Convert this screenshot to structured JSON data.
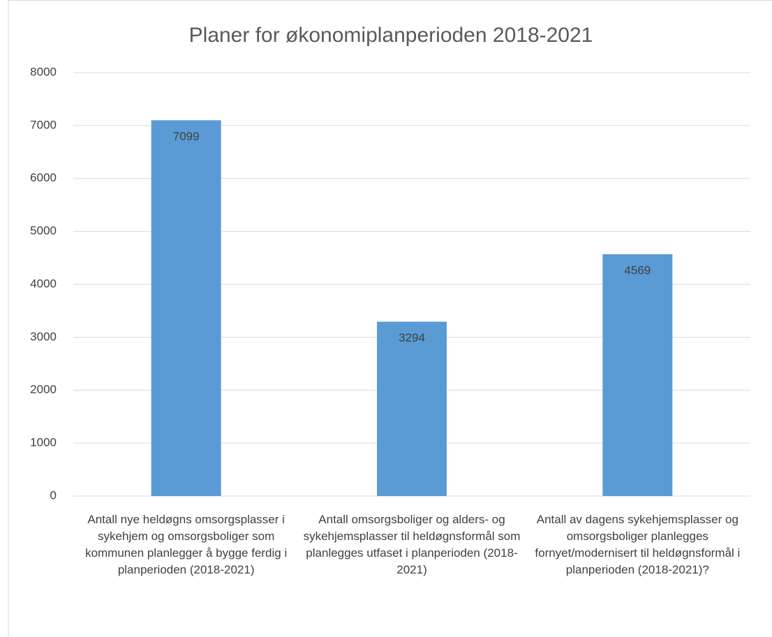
{
  "chart_data": {
    "type": "bar",
    "title": "Planer for økonomiplanperioden 2018-2021",
    "categories": [
      "Antall nye heldøgns omsorgsplasser i sykehjem og omsorgsboliger som kommunen planlegger å bygge ferdig i planperioden (2018-2021)",
      "Antall omsorgsboliger og alders- og sykehjemsplasser til heldøgnsformål som planlegges utfaset i planperioden (2018-2021)",
      "Antall av dagens sykehjemsplasser og omsorgsboliger planlegges fornyet/modernisert til heldøgnsformål i planperioden (2018-2021)?"
    ],
    "values": [
      7099,
      3294,
      4569
    ],
    "color": "#5b9bd5",
    "ylim": [
      0,
      8000
    ],
    "yticks": [
      0,
      1000,
      2000,
      3000,
      4000,
      5000,
      6000,
      7000,
      8000
    ],
    "grid": true
  }
}
